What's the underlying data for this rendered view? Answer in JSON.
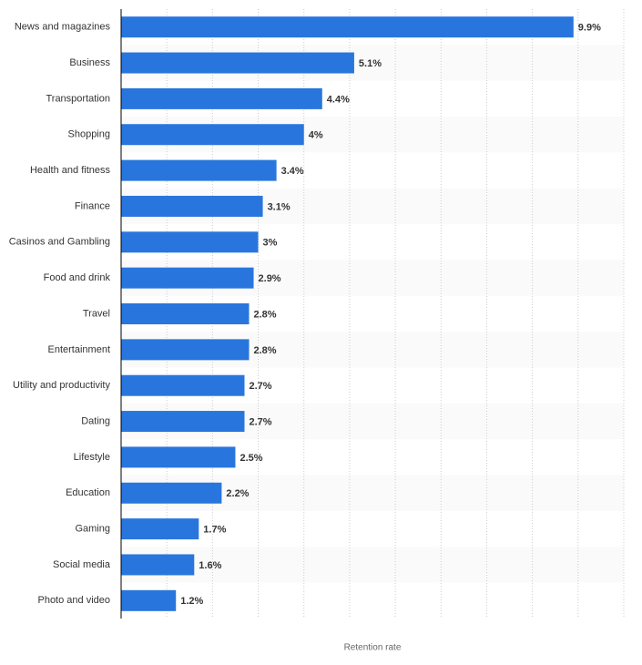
{
  "chart_data": {
    "type": "bar",
    "orientation": "horizontal",
    "x_label": "Retention rate",
    "categories": [
      "News and magazines",
      "Business",
      "Transportation",
      "Shopping",
      "Health and fitness",
      "Finance",
      "Casinos and Gambling",
      "Food and drink",
      "Travel",
      "Entertainment",
      "Utility and productivity",
      "Dating",
      "Lifestyle",
      "Education",
      "Gaming",
      "Social media",
      "Photo and video"
    ],
    "values": [
      9.9,
      5.1,
      4.4,
      4,
      3.4,
      3.1,
      3,
      2.9,
      2.8,
      2.8,
      2.7,
      2.7,
      2.5,
      2.2,
      1.7,
      1.6,
      1.2
    ],
    "value_labels": [
      "9.9%",
      "5.1%",
      "4.4%",
      "4%",
      "3.4%",
      "3.1%",
      "3%",
      "2.9%",
      "2.8%",
      "2.8%",
      "2.7%",
      "2.7%",
      "2.5%",
      "2.2%",
      "1.7%",
      "1.6%",
      "1.2%"
    ],
    "color": "#2876dd",
    "xlim": [
      0,
      11
    ],
    "xticks": [
      0,
      1,
      2,
      3,
      4,
      5,
      6,
      7,
      8,
      9,
      10,
      11
    ],
    "grid": true
  }
}
